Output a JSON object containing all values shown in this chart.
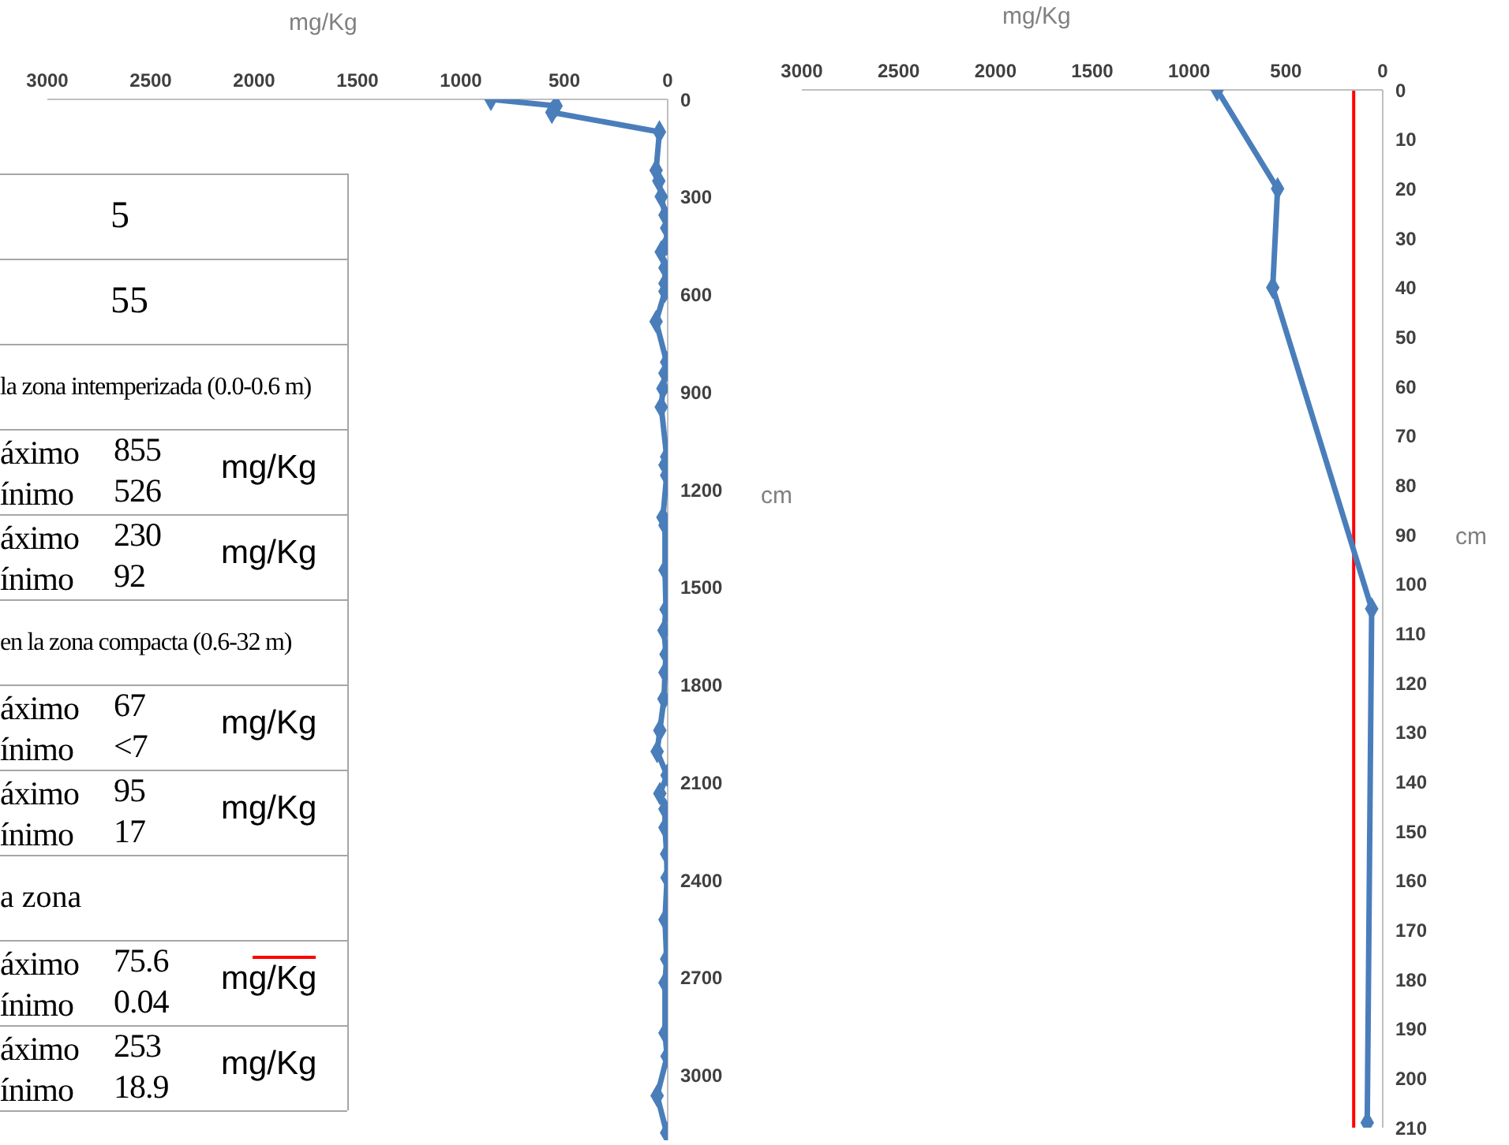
{
  "chart_data": [
    {
      "type": "line",
      "xlabel": "mg/Kg",
      "ylabel": "cm",
      "xlim": [
        3000,
        0
      ],
      "xticks": [
        3000,
        2500,
        2000,
        1500,
        1000,
        500,
        0
      ],
      "ylim": [
        3200,
        0
      ],
      "yticks": [
        0,
        300,
        600,
        900,
        1200,
        1500,
        1800,
        2100,
        2400,
        2700,
        3000
      ],
      "marker": "diamond",
      "series": [
        {
          "color": "#4a7ebb",
          "x": [
            855,
            540,
            560,
            40,
            56,
            43,
            31,
            13,
            5,
            5,
            31,
            13,
            13,
            13,
            56,
            5,
            13,
            23,
            31,
            5,
            13,
            5,
            23,
            13,
            13,
            8,
            18,
            8,
            13,
            18,
            38,
            51,
            3,
            38,
            13,
            13,
            5,
            3,
            13,
            5,
            13,
            13,
            3,
            51,
            5
          ],
          "values": [
            0,
            20,
            40,
            100,
            218,
            251,
            299,
            356,
            396,
            445,
            469,
            518,
            566,
            590,
            683,
            808,
            842,
            889,
            946,
            1099,
            1124,
            1156,
            1285,
            1309,
            1447,
            1568,
            1633,
            1706,
            1762,
            1843,
            1940,
            2005,
            2078,
            2134,
            2182,
            2239,
            2320,
            2393,
            2522,
            2643,
            2716,
            2870,
            2942,
            3063,
            3177
          ]
        }
      ]
    },
    {
      "type": "other",
      "annotations": [
        "5",
        "55",
        "la zona intemperizada (0.0-0.6 m)",
        "áximo",
        "855",
        "ínimo",
        "526",
        "mg/Kg",
        "áximo",
        "230",
        "ínimo",
        "92",
        "mg/Kg",
        "en la zona compacta (0.6-32 m)",
        "áximo",
        "67",
        "ínimo",
        "<7",
        "mg/Kg",
        "áximo",
        "95",
        "ínimo",
        "17",
        "mg/Kg",
        "a zona",
        "áximo",
        "75.6",
        "ínimo",
        "0.04",
        "mg/Kg",
        "áximo",
        "253",
        "ínimo",
        "18.9",
        "mg/Kg"
      ]
    },
    {
      "type": "line",
      "xlabel": "mg/Kg",
      "ylabel": "cm",
      "xlim": [
        3000,
        0
      ],
      "xticks": [
        3000,
        2500,
        2000,
        1500,
        1000,
        500,
        0
      ],
      "ylim": [
        210,
        0
      ],
      "yticks": [
        0,
        10,
        20,
        30,
        40,
        50,
        60,
        70,
        80,
        90,
        100,
        110,
        120,
        130,
        140,
        150,
        160,
        170,
        180,
        190,
        200,
        210
      ],
      "marker": "diamond",
      "ref_lines": [
        {
          "axis": "x",
          "value": 150,
          "color": "#ff0000"
        }
      ],
      "series": [
        {
          "color": "#4a7ebb",
          "x": [
            855,
            543,
            568,
            57,
            80
          ],
          "values": [
            0,
            20,
            40,
            105,
            209
          ]
        }
      ]
    }
  ]
}
